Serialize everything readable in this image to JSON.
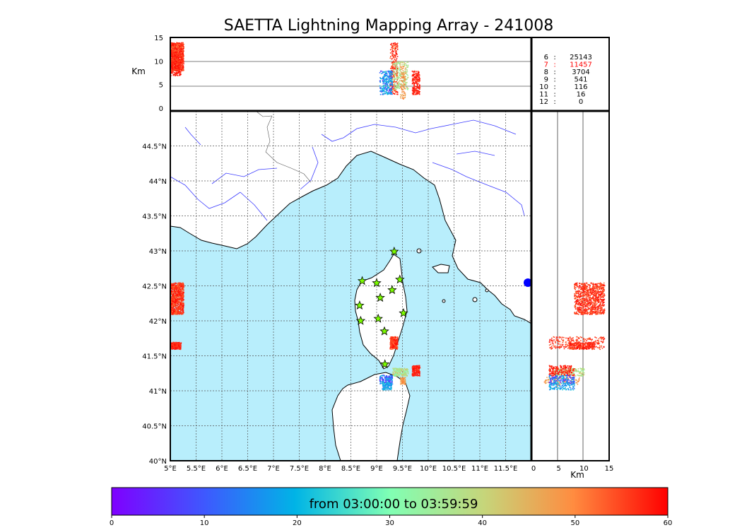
{
  "title": "SAETTA Lightning Mapping Array - 241008",
  "colorbar_label": "from 03:00:00 to 03:59:59",
  "colors": {
    "sea": "#b8eefc",
    "land": "#ffffff",
    "coast": "#000000",
    "rivers": "#3b3bff",
    "borders": "#555555",
    "grid": "#555555",
    "station_fill": "#7cfc00",
    "highlight": "#ff0000"
  },
  "chart_data": {
    "type": "scatter",
    "title": "SAETTA Lightning Mapping Array - 241008",
    "map_panel": {
      "lon_range": [
        5,
        12
      ],
      "lat_range": [
        40,
        45
      ],
      "lon_ticks": [
        "5°E",
        "5.5°E",
        "6°E",
        "6.5°E",
        "7°E",
        "7.5°E",
        "8°E",
        "8.5°E",
        "9°E",
        "9.5°E",
        "10°E",
        "10.5°E",
        "11°E",
        "11.5°E"
      ],
      "lat_ticks": [
        "40°N",
        "40.5°N",
        "41°N",
        "41.5°N",
        "42°N",
        "42.5°N",
        "43°N",
        "43.5°N",
        "44°N",
        "44.5°N"
      ],
      "grid": true
    },
    "altitude_lon_panel": {
      "ylabel": "Km",
      "y_range": [
        0,
        15
      ],
      "y_ticks": [
        "0",
        "5",
        "10",
        "15"
      ]
    },
    "altitude_lat_panel": {
      "xlabel": "Km",
      "x_range": [
        0,
        15
      ],
      "x_ticks": [
        "0",
        "5",
        "10",
        "15"
      ]
    },
    "stations": [
      {
        "lon": 8.72,
        "lat": 42.57
      },
      {
        "lon": 9.0,
        "lat": 42.54
      },
      {
        "lon": 9.34,
        "lat": 42.99
      },
      {
        "lon": 9.45,
        "lat": 42.59
      },
      {
        "lon": 9.3,
        "lat": 42.44
      },
      {
        "lon": 9.07,
        "lat": 42.33
      },
      {
        "lon": 8.67,
        "lat": 42.22
      },
      {
        "lon": 9.52,
        "lat": 42.11
      },
      {
        "lon": 9.03,
        "lat": 42.03
      },
      {
        "lon": 8.69,
        "lat": 42.0
      },
      {
        "lon": 9.15,
        "lat": 41.85
      },
      {
        "lon": 9.16,
        "lat": 41.38
      }
    ],
    "clusters": [
      {
        "lon": [
          5.0,
          5.25
        ],
        "lat": [
          42.1,
          42.55
        ],
        "alt": [
          8,
          14
        ],
        "color_min": 52,
        "color_max": 60,
        "n": 900
      },
      {
        "lon": [
          5.0,
          5.2
        ],
        "lat": [
          41.6,
          41.7
        ],
        "alt": [
          7,
          12
        ],
        "color_min": 55,
        "color_max": 60,
        "n": 220
      },
      {
        "lon": [
          9.25,
          9.4
        ],
        "lat": [
          41.6,
          41.78
        ],
        "alt": [
          3,
          14
        ],
        "color_min": 52,
        "color_max": 60,
        "n": 260
      },
      {
        "lon": [
          9.3,
          9.6
        ],
        "lat": [
          41.22,
          41.33
        ],
        "alt": [
          4,
          10
        ],
        "color_min": 30,
        "color_max": 45,
        "n": 200
      },
      {
        "lon": [
          9.45,
          9.55
        ],
        "lat": [
          41.1,
          41.2
        ],
        "alt": [
          2,
          9
        ],
        "color_min": 45,
        "color_max": 52,
        "n": 90
      },
      {
        "lon": [
          9.68,
          9.83
        ],
        "lat": [
          41.22,
          41.37
        ],
        "alt": [
          3,
          8
        ],
        "color_min": 55,
        "color_max": 60,
        "n": 200
      },
      {
        "lon": [
          9.05,
          9.3
        ],
        "lat": [
          41.1,
          41.23
        ],
        "alt": [
          3,
          8
        ],
        "color_min": 2,
        "color_max": 22,
        "n": 160
      },
      {
        "lon": [
          9.1,
          9.28
        ],
        "lat": [
          41.02,
          41.12
        ],
        "alt": [
          3,
          8
        ],
        "color_min": 12,
        "color_max": 25,
        "n": 110
      }
    ],
    "counts_table": [
      {
        "hour": "6",
        "sep": ":",
        "count": "25143",
        "highlight": false
      },
      {
        "hour": "7",
        "sep": ":",
        "count": "11457",
        "highlight": true
      },
      {
        "hour": "8",
        "sep": ":",
        "count": "3704",
        "highlight": false
      },
      {
        "hour": "9",
        "sep": ":",
        "count": "541",
        "highlight": false
      },
      {
        "hour": "10",
        "sep": ":",
        "count": "116",
        "highlight": false
      },
      {
        "hour": "11",
        "sep": ":",
        "count": "16",
        "highlight": false
      },
      {
        "hour": "12",
        "sep": ":",
        "count": "0",
        "highlight": false
      }
    ],
    "colorbar": {
      "range": [
        0,
        60
      ],
      "ticks": [
        "0",
        "10",
        "20",
        "30",
        "40",
        "50",
        "60"
      ],
      "label": "from 03:00:00 to 03:59:59"
    }
  }
}
